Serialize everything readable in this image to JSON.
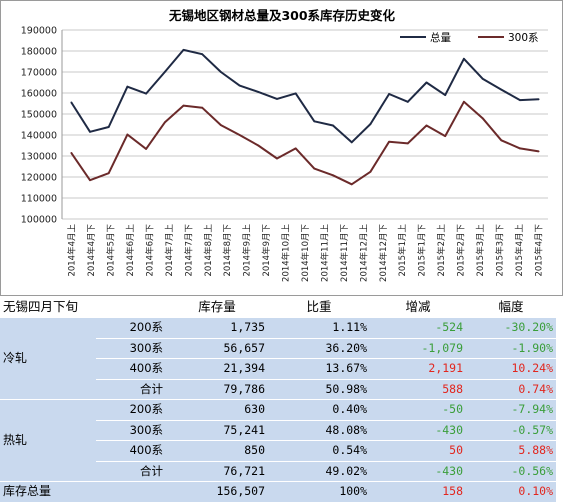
{
  "chart_data": {
    "type": "line",
    "title": "无锡地区钢材总量及300系库存历史变化",
    "x": [
      "2014年4月上",
      "2014年4月下",
      "2014年5月上",
      "2014年5月下",
      "2014年6月上",
      "2014年6月下",
      "2014年7月上",
      "2014年7月下",
      "2014年8月上",
      "2014年8月下",
      "2014年9月上",
      "2014年9月下",
      "2014年10月上",
      "2014年10月下",
      "2014年11月上",
      "2014年11月下",
      "2014年12月上",
      "2014年12月下",
      "2015年1月上",
      "2015年1月下",
      "2015年2月上",
      "2015年2月下",
      "2015年3月上",
      "2015年3月下",
      "2015年4月上",
      "2015年4月下"
    ],
    "x_tick_labels": [
      "2014年4月上",
      "2014年4月下",
      "2014年5月下",
      "2014年6月上",
      "2014年6月下",
      "2014年7月上",
      "2014年7月下",
      "2014年8月上",
      "2014年8月下",
      "2014年9月上",
      "2014年9月下",
      "2014年10月上",
      "2014年10月下",
      "2014年11月上",
      "2014年11月下",
      "2014年12月上",
      "2014年12月下",
      "2015年1月上",
      "2015年1月下",
      "2015年2月上",
      "2015年2月下",
      "2015年3月上",
      "2015年3月下",
      "2015年4月上",
      "2015年4月下"
    ],
    "series": [
      {
        "name": "总量",
        "color": "#1f2a44",
        "values": [
          155500,
          141500,
          143800,
          163000,
          159700,
          170000,
          180500,
          178500,
          170000,
          163500,
          160500,
          157200,
          159800,
          146500,
          144500,
          136500,
          145200,
          159500,
          155800,
          165000,
          159000,
          176300,
          166800,
          161600,
          156600,
          157000
        ]
      },
      {
        "name": "300系",
        "color": "#6b2a2a",
        "values": [
          131500,
          118500,
          121800,
          140200,
          133400,
          146000,
          154000,
          153000,
          144700,
          140000,
          135000,
          128800,
          133600,
          124000,
          120800,
          116500,
          122500,
          136800,
          136000,
          144500,
          139500,
          155800,
          148000,
          137500,
          133600,
          132200
        ]
      }
    ],
    "ylim": [
      100000,
      190000
    ],
    "y_ticks": [
      100000,
      110000,
      120000,
      130000,
      140000,
      150000,
      160000,
      170000,
      180000,
      190000
    ],
    "grid": true,
    "legend": "top-right"
  },
  "table": {
    "headers": [
      "无锡四月下旬",
      "库存量",
      "比重",
      "增减",
      "幅度"
    ],
    "rows": [
      {
        "group": "冷轧",
        "sub": "200系",
        "stock": "1,735",
        "share": "1.11%",
        "change": "-524",
        "change_sign": "neg",
        "rate": "-30.20%",
        "rate_sign": "neg"
      },
      {
        "group": "",
        "sub": "300系",
        "stock": "56,657",
        "share": "36.20%",
        "change": "-1,079",
        "change_sign": "neg",
        "rate": "-1.90%",
        "rate_sign": "neg"
      },
      {
        "group": "",
        "sub": "400系",
        "stock": "21,394",
        "share": "13.67%",
        "change": "2,191",
        "change_sign": "pos",
        "rate": "10.24%",
        "rate_sign": "pos"
      },
      {
        "group": "",
        "sub": "合计",
        "stock": "79,786",
        "share": "50.98%",
        "change": "588",
        "change_sign": "pos",
        "rate": "0.74%",
        "rate_sign": "pos"
      },
      {
        "group": "热轧",
        "sub": "200系",
        "stock": "630",
        "share": "0.40%",
        "change": "-50",
        "change_sign": "neg",
        "rate": "-7.94%",
        "rate_sign": "neg"
      },
      {
        "group": "",
        "sub": "300系",
        "stock": "75,241",
        "share": "48.08%",
        "change": "-430",
        "change_sign": "neg",
        "rate": "-0.57%",
        "rate_sign": "neg"
      },
      {
        "group": "",
        "sub": "400系",
        "stock": "850",
        "share": "0.54%",
        "change": "50",
        "change_sign": "pos",
        "rate": "5.88%",
        "rate_sign": "pos"
      },
      {
        "group": "",
        "sub": "合计",
        "stock": "76,721",
        "share": "49.02%",
        "change": "-430",
        "change_sign": "neg",
        "rate": "-0.56%",
        "rate_sign": "neg"
      }
    ],
    "total": {
      "label": "库存总量",
      "stock": "156,507",
      "share": "100%",
      "change": "158",
      "change_sign": "pos",
      "rate": "0.10%",
      "rate_sign": "pos"
    }
  }
}
